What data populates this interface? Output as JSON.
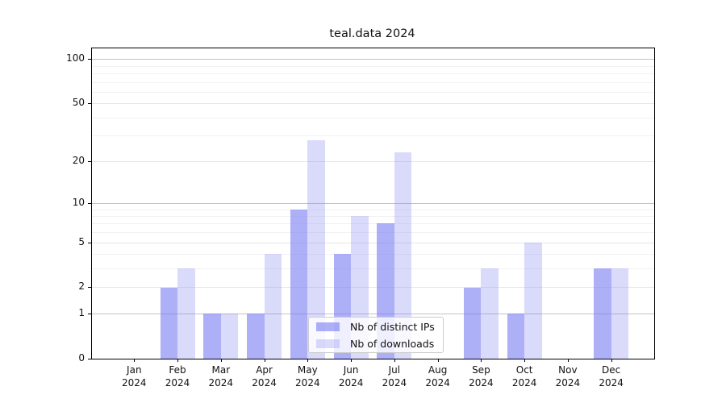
{
  "title": "teal.data 2024",
  "chart_data": {
    "type": "bar",
    "title": "teal.data 2024",
    "x_tick_months": [
      "Jan",
      "Feb",
      "Mar",
      "Apr",
      "May",
      "Jun",
      "Jul",
      "Aug",
      "Sep",
      "Oct",
      "Nov",
      "Dec"
    ],
    "x_tick_year": "2024",
    "series": [
      {
        "name": "Nb of distinct IPs",
        "color": "rgba(122,126,242,0.62)",
        "values": [
          0,
          2,
          1,
          1,
          9,
          4,
          7,
          0,
          2,
          1,
          0,
          3
        ]
      },
      {
        "name": "Nb of downloads",
        "color": "rgba(122,126,242,0.28)",
        "values": [
          0,
          3,
          1,
          4,
          28,
          8,
          23,
          0,
          3,
          5,
          0,
          3
        ]
      }
    ],
    "yscale": "log1p",
    "y_ticks": [
      0,
      1,
      2,
      5,
      10,
      20,
      50,
      100
    ],
    "y_minor_gridlines": [
      3,
      4,
      6,
      7,
      8,
      9,
      30,
      40,
      60,
      70,
      80,
      90
    ],
    "ylim": [
      0,
      118
    ],
    "grid": true,
    "legend_position": "lower center"
  },
  "colors": {
    "grid_decade": "#c3c3c7",
    "grid_submajor": "#e6e6ea",
    "grid_minor": "#f2f2f4",
    "spine": "#000000",
    "text": "#111111"
  }
}
